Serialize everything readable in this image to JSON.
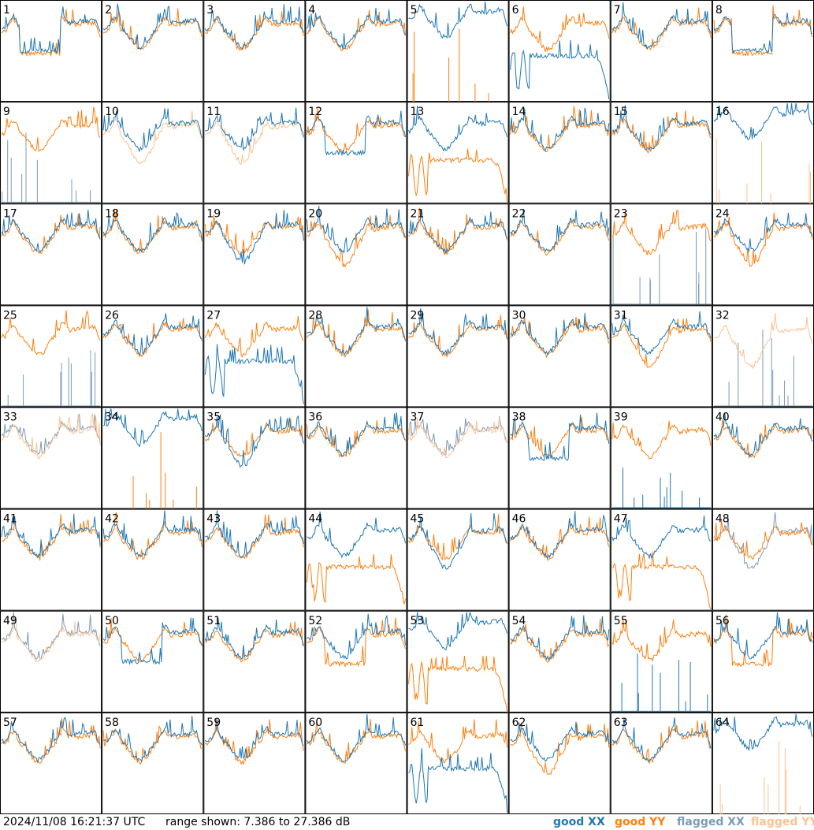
{
  "chart_data": {
    "type": "line",
    "panels": [
      "1",
      "2",
      "3",
      "4",
      "5",
      "6",
      "7",
      "8",
      "9",
      "10",
      "11",
      "12",
      "13",
      "14",
      "15",
      "16",
      "17",
      "18",
      "19",
      "20",
      "21",
      "22",
      "23",
      "24",
      "25",
      "26",
      "27",
      "28",
      "29",
      "30",
      "31",
      "32",
      "33",
      "34",
      "35",
      "36",
      "37",
      "38",
      "39",
      "40",
      "41",
      "42",
      "43",
      "44",
      "45",
      "46",
      "47",
      "48",
      "49",
      "50",
      "51",
      "52",
      "53",
      "54",
      "55",
      "56",
      "57",
      "58",
      "59",
      "60",
      "61",
      "62",
      "63",
      "64"
    ],
    "ylim": [
      7.386,
      27.386
    ],
    "series": [
      {
        "name": "good XX",
        "color": "#1f77b4"
      },
      {
        "name": "good YY",
        "color": "#ff7f0e"
      },
      {
        "name": "flagged XX",
        "color": "#7b9bb8"
      },
      {
        "name": "flagged YY",
        "color": "#fcc291"
      }
    ],
    "panel_state": {
      "1": {
        "xx": "good",
        "yy": "good",
        "xx_shape": "flatmid",
        "yy_shape": "flatmid"
      },
      "5": {
        "xx": "good",
        "yy": "good",
        "xx_shape": "highbroad",
        "yy_shape": "spikes"
      },
      "6": {
        "xx": "good",
        "yy": "good",
        "xx_shape": "rolloff",
        "yy_shape": "normal"
      },
      "8": {
        "xx": "good",
        "yy": "good",
        "xx_shape": "flatmid",
        "yy_shape": "flatmid"
      },
      "9": {
        "xx": "flagged",
        "yy": "good",
        "xx_shape": "spikes",
        "yy_shape": "normal"
      },
      "10": {
        "xx": "good",
        "yy": "flagged",
        "xx_shape": "normal",
        "yy_shape": "deep"
      },
      "11": {
        "xx": "good",
        "yy": "flagged",
        "xx_shape": "normal",
        "yy_shape": "deep"
      },
      "12": {
        "xx": "good",
        "yy": "good",
        "xx_shape": "flatmid",
        "yy_shape": "normal"
      },
      "13": {
        "xx": "good",
        "yy": "good",
        "xx_shape": "normal",
        "yy_shape": "rolloff"
      },
      "16": {
        "xx": "good",
        "yy": "flagged",
        "xx_shape": "highbroad",
        "yy_shape": "spikes"
      },
      "19": {
        "xx": "good",
        "yy": "good",
        "xx_shape": "deep",
        "yy_shape": "normal"
      },
      "20": {
        "xx": "good",
        "yy": "good",
        "xx_shape": "normal",
        "yy_shape": "deep"
      },
      "23": {
        "xx": "flagged",
        "yy": "good",
        "xx_shape": "spikes",
        "yy_shape": "normal"
      },
      "24": {
        "xx": "good",
        "yy": "good",
        "xx_shape": "normal",
        "yy_shape": "deep"
      },
      "25": {
        "xx": "flagged",
        "yy": "good",
        "xx_shape": "spikes",
        "yy_shape": "normal"
      },
      "27": {
        "xx": "good",
        "yy": "good",
        "xx_shape": "rolloff",
        "yy_shape": "normal"
      },
      "31": {
        "xx": "good",
        "yy": "good",
        "xx_shape": "normal",
        "yy_shape": "deep"
      },
      "32": {
        "xx": "flagged",
        "yy": "flagged",
        "xx_shape": "spikes",
        "yy_shape": "deep"
      },
      "33": {
        "xx": "flagged",
        "yy": "flagged",
        "xx_shape": "normal",
        "yy_shape": "normal"
      },
      "34": {
        "xx": "good",
        "yy": "good",
        "xx_shape": "highbroad",
        "yy_shape": "spikes"
      },
      "35": {
        "xx": "good",
        "yy": "good",
        "xx_shape": "deep",
        "yy_shape": "normal"
      },
      "37": {
        "xx": "flagged",
        "yy": "flagged",
        "xx_shape": "normal",
        "yy_shape": "normal"
      },
      "38": {
        "xx": "good",
        "yy": "good",
        "xx_shape": "flatmid",
        "yy_shape": "normal"
      },
      "39": {
        "xx": "good",
        "yy": "good",
        "xx_shape": "spikes",
        "yy_shape": "normal"
      },
      "44": {
        "xx": "good",
        "yy": "good",
        "xx_shape": "normal",
        "yy_shape": "rolloff"
      },
      "45": {
        "xx": "good",
        "yy": "good",
        "xx_shape": "deep",
        "yy_shape": "normal"
      },
      "47": {
        "xx": "good",
        "yy": "good",
        "xx_shape": "normal",
        "yy_shape": "rolloff"
      },
      "48": {
        "xx": "flagged",
        "yy": "good",
        "xx_shape": "deep",
        "yy_shape": "normal"
      },
      "49": {
        "xx": "flagged",
        "yy": "flagged",
        "xx_shape": "normal",
        "yy_shape": "normal"
      },
      "50": {
        "xx": "good",
        "yy": "good",
        "xx_shape": "flatmid",
        "yy_shape": "normal"
      },
      "52": {
        "xx": "good",
        "yy": "good",
        "xx_shape": "normal",
        "yy_shape": "flatmid"
      },
      "53": {
        "xx": "good",
        "yy": "good",
        "xx_shape": "highbroad",
        "yy_shape": "rolloff"
      },
      "55": {
        "xx": "good",
        "yy": "good",
        "xx_shape": "spikes",
        "yy_shape": "normal"
      },
      "56": {
        "xx": "good",
        "yy": "good",
        "xx_shape": "normal",
        "yy_shape": "flatmid"
      },
      "61": {
        "xx": "good",
        "yy": "good",
        "xx_shape": "rolloff",
        "yy_shape": "normal"
      },
      "62": {
        "xx": "good",
        "yy": "good",
        "xx_shape": "normal",
        "yy_shape": "deep"
      },
      "64": {
        "xx": "good",
        "yy": "flagged",
        "xx_shape": "highbroad",
        "yy_shape": "spikes"
      }
    }
  },
  "footer": {
    "timestamp": "2024/11/08 16:21:37 UTC",
    "range_text": "range shown: 7.386 to 27.386 dB"
  },
  "legend": {
    "good_xx": "good XX",
    "good_yy": "good YY",
    "flagged_xx": "flagged XX",
    "flagged_yy": "flagged YY"
  }
}
